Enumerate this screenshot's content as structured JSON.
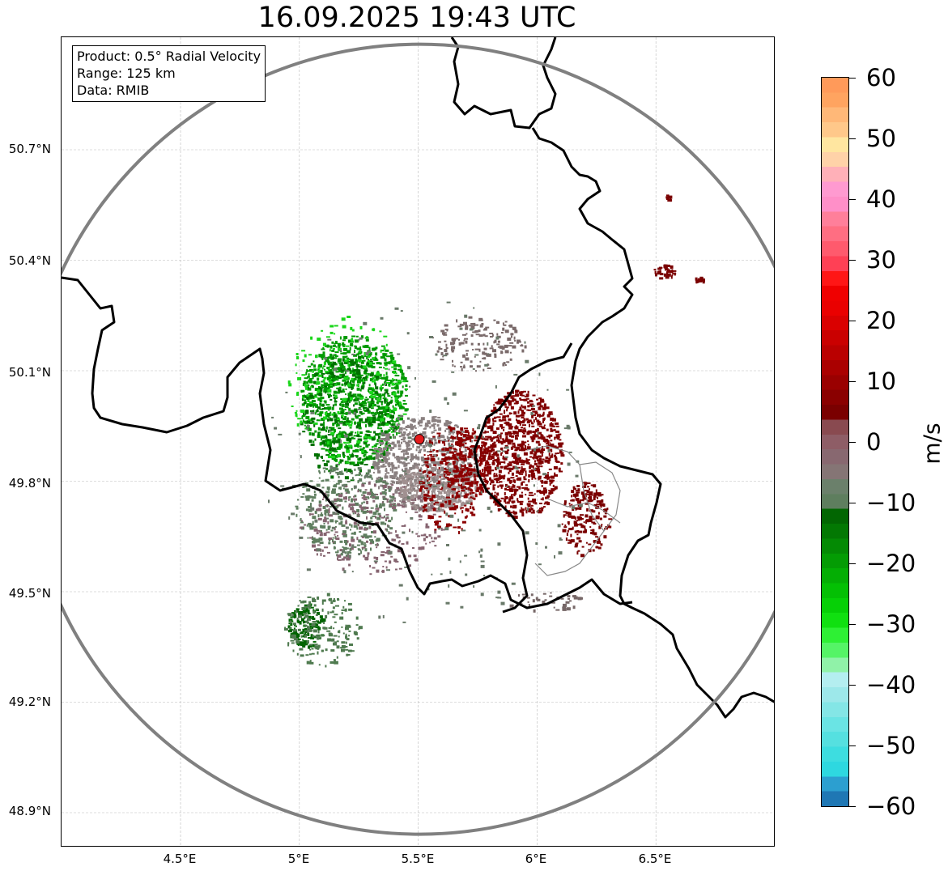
{
  "title": "16.09.2025 19:43 UTC",
  "info": {
    "product": "Product: 0.5° Radial Velocity",
    "range": "Range: 125 km",
    "data": "Data: RMIB"
  },
  "lat_ticks": [
    "50.7°N",
    "50.4°N",
    "50.1°N",
    "49.8°N",
    "49.5°N",
    "49.2°N",
    "48.9°N"
  ],
  "lon_ticks": [
    "4.5°E",
    "5°E",
    "5.5°E",
    "6°E",
    "6.5°E"
  ],
  "map": {
    "lon_range": [
      4.0,
      7.0
    ],
    "lat_range": [
      48.8,
      51.0
    ],
    "radar_site": {
      "lon": 5.505,
      "lat": 49.914
    },
    "range_ring_color": "#808080",
    "radar_marker_color": "#e31a1c"
  },
  "colorbar": {
    "label": "m/s",
    "tick_labels": [
      "60",
      "50",
      "40",
      "30",
      "20",
      "10",
      "0",
      "−10",
      "−20",
      "−30",
      "−40",
      "−50",
      "−60"
    ],
    "range": [
      -60,
      60
    ],
    "colors_bottom_to_top": [
      "#1f77b4",
      "#2c9fd0",
      "#2ed8e0",
      "#3ddde0",
      "#55e0e0",
      "#6ae4e4",
      "#84e6e6",
      "#9de8ea",
      "#b4eef0",
      "#90f2a8",
      "#55f466",
      "#2ef034",
      "#10e010",
      "#06d006",
      "#04c004",
      "#04ae04",
      "#049c04",
      "#048a04",
      "#037803",
      "#026602",
      "#5e7e5e",
      "#6b806b",
      "#857575",
      "#886870",
      "#8e5d66",
      "#894a50",
      "#7a0000",
      "#8a0000",
      "#9a0000",
      "#aa0000",
      "#ba0000",
      "#ca0000",
      "#da0000",
      "#ea0000",
      "#f00000",
      "#ff1616",
      "#ff4055",
      "#ff5a6d",
      "#ff6e82",
      "#ff7f9a",
      "#ff8fc8",
      "#ff9ad0",
      "#ffb0b8",
      "#ffd2a8",
      "#ffe6a0",
      "#ffc88a",
      "#ffb878",
      "#ffa460",
      "#ff9a5a"
    ]
  },
  "echo_regions": [
    {
      "name": "green-core",
      "color": "#009a00",
      "lon": [
        5.0,
        5.45
      ],
      "lat": [
        49.85,
        50.2
      ],
      "n": 900
    },
    {
      "name": "green-dark",
      "color": "#007000",
      "lon": [
        5.0,
        5.4
      ],
      "lat": [
        49.8,
        50.15
      ],
      "n": 300
    },
    {
      "name": "green-bright",
      "color": "#1ad61a",
      "lon": [
        4.95,
        5.45
      ],
      "lat": [
        49.85,
        50.25
      ],
      "n": 200
    },
    {
      "name": "grey-center",
      "color": "#8a8080",
      "lon": [
        5.3,
        5.75
      ],
      "lat": [
        49.72,
        49.98
      ],
      "n": 700
    },
    {
      "name": "grey-light",
      "color": "#a09090",
      "lon": [
        5.4,
        5.75
      ],
      "lat": [
        49.72,
        49.85
      ],
      "n": 300
    },
    {
      "name": "greygreen-sw",
      "color": "#5f7e5f",
      "lon": [
        4.98,
        5.4
      ],
      "lat": [
        49.6,
        49.85
      ],
      "n": 350
    },
    {
      "name": "pink-sw",
      "color": "#866470",
      "lon": [
        5.0,
        5.6
      ],
      "lat": [
        49.55,
        49.8
      ],
      "n": 250
    },
    {
      "name": "grey-north",
      "color": "#7a6a6a",
      "lon": [
        5.55,
        5.95
      ],
      "lat": [
        50.1,
        50.25
      ],
      "n": 160
    },
    {
      "name": "red-east",
      "color": "#800000",
      "lon": [
        5.75,
        6.1
      ],
      "lat": [
        49.7,
        50.05
      ],
      "n": 800
    },
    {
      "name": "red-mid",
      "color": "#8b0000",
      "lon": [
        5.6,
        5.8
      ],
      "lat": [
        49.75,
        49.95
      ],
      "n": 220
    },
    {
      "name": "red-spots",
      "color": "#8b0000",
      "lon": [
        5.5,
        5.75
      ],
      "lat": [
        49.65,
        49.95
      ],
      "n": 200
    },
    {
      "name": "red-far-east",
      "color": "#7a0000",
      "lon": [
        6.1,
        6.3
      ],
      "lat": [
        49.6,
        49.8
      ],
      "n": 200
    },
    {
      "name": "dark-green-cell",
      "color": "#006400",
      "lon": [
        4.95,
        5.1
      ],
      "lat": [
        49.35,
        49.47
      ],
      "n": 140
    },
    {
      "name": "greygreen-cell",
      "color": "#4f7a4f",
      "lon": [
        4.93,
        5.25
      ],
      "lat": [
        49.3,
        49.5
      ],
      "n": 180
    },
    {
      "name": "scatter-wide",
      "color": "#6a7a6a",
      "lon": [
        4.85,
        6.2
      ],
      "lat": [
        49.4,
        50.3
      ],
      "n": 220
    },
    {
      "name": "rain-ne-1",
      "color": "#7a0000",
      "lon": [
        6.48,
        6.58
      ],
      "lat": [
        50.35,
        50.39
      ],
      "n": 40
    },
    {
      "name": "rain-ne-2",
      "color": "#7a0000",
      "lon": [
        6.66,
        6.7
      ],
      "lat": [
        50.34,
        50.36
      ],
      "n": 14
    },
    {
      "name": "rain-ne-3",
      "color": "#7a0000",
      "lon": [
        6.52,
        6.56
      ],
      "lat": [
        50.56,
        50.58
      ],
      "n": 10
    },
    {
      "name": "grey-border-se",
      "color": "#776868",
      "lon": [
        5.85,
        6.2
      ],
      "lat": [
        49.45,
        49.5
      ],
      "n": 40
    }
  ]
}
